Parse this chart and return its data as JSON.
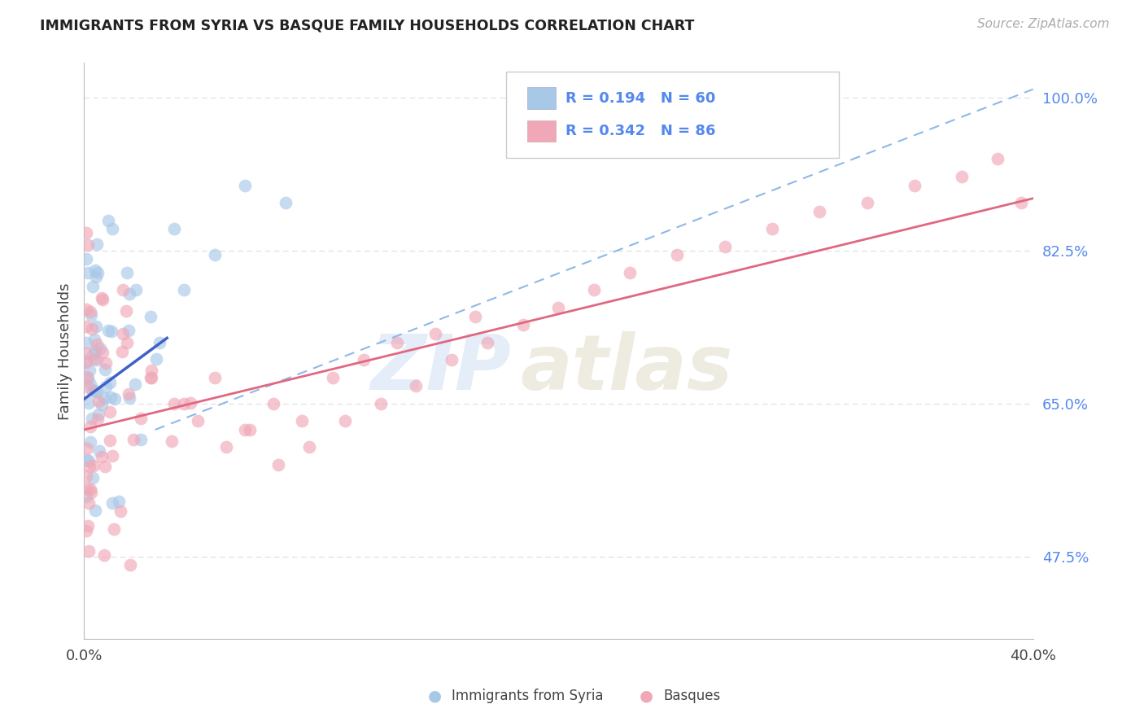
{
  "title": "IMMIGRANTS FROM SYRIA VS BASQUE FAMILY HOUSEHOLDS CORRELATION CHART",
  "source": "Source: ZipAtlas.com",
  "xlabel_blue": "Immigrants from Syria",
  "xlabel_pink": "Basques",
  "ylabel": "Family Households",
  "watermark_zip": "ZIP",
  "watermark_atlas": "atlas",
  "xlim": [
    0.0,
    0.4
  ],
  "ylim": [
    0.38,
    1.04
  ],
  "blue_R": 0.194,
  "blue_N": 60,
  "pink_R": 0.342,
  "pink_N": 86,
  "blue_color": "#a8c8e8",
  "pink_color": "#f0a8b8",
  "blue_line_color": "#4060c8",
  "pink_line_color": "#e06880",
  "dash_line_color": "#90b8e8",
  "title_color": "#222222",
  "source_color": "#aaaaaa",
  "right_tick_color": "#5588ee",
  "grid_color": "#dddddd",
  "ytick_vals": [
    0.475,
    0.65,
    0.825,
    1.0
  ],
  "ytick_labels": [
    "47.5%",
    "65.0%",
    "82.5%",
    "100.0%"
  ],
  "blue_trend_x": [
    0.0,
    0.035
  ],
  "blue_trend_y": [
    0.655,
    0.725
  ],
  "pink_trend_x": [
    0.0,
    0.4
  ],
  "pink_trend_y": [
    0.62,
    0.885
  ],
  "dash_trend_x": [
    0.03,
    0.4
  ],
  "dash_trend_y": [
    0.62,
    1.01
  ]
}
